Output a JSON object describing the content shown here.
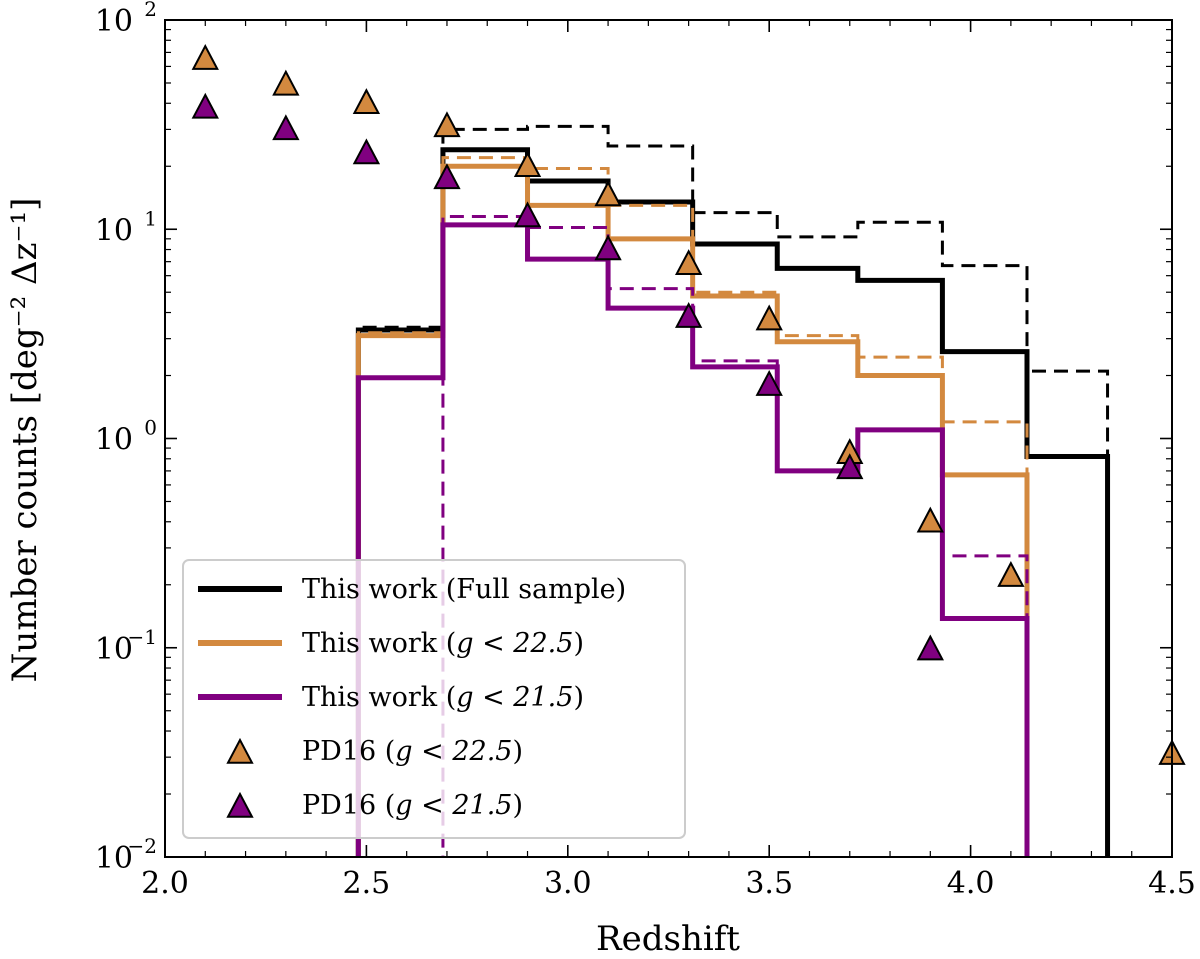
{
  "chart_data": {
    "type": "line",
    "title": "",
    "xlabel": "Redshift",
    "ylabel": "Number counts [deg⁻² Δz⁻¹]",
    "xlim": [
      2.0,
      4.5
    ],
    "ylim": [
      0.01,
      100
    ],
    "yscale": "log",
    "x_ticks": [
      2.0,
      2.5,
      3.0,
      3.5,
      4.0,
      4.5
    ],
    "x_tick_labels": [
      "2.0",
      "2.5",
      "3.0",
      "3.5",
      "4.0",
      "4.5"
    ],
    "y_ticks": [
      {
        "value": 0.01,
        "base": "10",
        "exp": "−2"
      },
      {
        "value": 0.1,
        "base": "10",
        "exp": "−1"
      },
      {
        "value": 1,
        "base": "10",
        "exp": "0"
      },
      {
        "value": 10,
        "base": "10",
        "exp": "1"
      },
      {
        "value": 100,
        "base": "10",
        "exp": "2"
      }
    ],
    "bin_edges": [
      2.48,
      2.69,
      2.9,
      3.1,
      3.31,
      3.52,
      3.72,
      3.93,
      4.14,
      4.34
    ],
    "series": [
      {
        "name": "This work (Full sample)",
        "style": "solid",
        "color": "#000000",
        "values": [
          3.3,
          24,
          17,
          13.5,
          8.5,
          6.5,
          5.7,
          2.6,
          0.82
        ]
      },
      {
        "name": "Full sample (dashed)",
        "style": "dashed",
        "color": "#000000",
        "legend": false,
        "values": [
          3.4,
          30,
          31,
          25,
          12,
          9.2,
          10.8,
          6.7,
          2.1
        ]
      },
      {
        "name": "This work (g < 22.5)",
        "style": "solid",
        "color": "#d3893f",
        "values": [
          3.1,
          20,
          13,
          9,
          4.8,
          2.9,
          2.0,
          0.67,
          0
        ]
      },
      {
        "name": "g < 22.5 (dashed)",
        "style": "dashed",
        "color": "#d3893f",
        "legend": false,
        "values": [
          3.2,
          22,
          19.5,
          13,
          5.0,
          3.1,
          2.45,
          1.2,
          0
        ]
      },
      {
        "name": "This work (g < 21.5)",
        "style": "solid",
        "color": "#800080",
        "values": [
          1.95,
          10.5,
          7.2,
          4.2,
          2.2,
          0.7,
          1.1,
          0.138,
          0
        ]
      },
      {
        "name": "g < 21.5 (dashed)",
        "style": "dashed",
        "color": "#800080",
        "legend": false,
        "values": [
          0,
          11.5,
          10.2,
          5.2,
          2.35,
          0.7,
          1.1,
          0.275,
          0
        ]
      }
    ],
    "points": [
      {
        "name": "PD16 (g < 22.5)",
        "color": "#d3893f",
        "x": [
          2.1,
          2.3,
          2.5,
          2.7,
          2.9,
          3.1,
          3.3,
          3.5,
          3.7,
          3.9,
          4.1,
          4.5
        ],
        "y": [
          65,
          49,
          40,
          31,
          20,
          14.5,
          6.8,
          3.7,
          0.85,
          0.4,
          0.22,
          0.031
        ]
      },
      {
        "name": "PD16 (g < 21.5)",
        "color": "#800080",
        "x": [
          2.1,
          2.3,
          2.5,
          2.7,
          2.9,
          3.1,
          3.3,
          3.5,
          3.7,
          3.9
        ],
        "y": [
          38,
          30,
          23,
          17.5,
          11.5,
          8,
          3.8,
          1.8,
          0.72,
          0.098
        ]
      }
    ],
    "legend": {
      "position": "lower-left",
      "entries": [
        {
          "label_main": "This work (Full sample)",
          "label_math": "",
          "label_end": "",
          "kind": "line",
          "color": "#000000"
        },
        {
          "label_main": "This work (",
          "label_math": "g < 22.5",
          "label_end": ")",
          "kind": "line",
          "color": "#d3893f"
        },
        {
          "label_main": "This work (",
          "label_math": "g < 21.5",
          "label_end": ")",
          "kind": "line",
          "color": "#800080"
        },
        {
          "label_main": "PD16 (",
          "label_math": "g < 22.5",
          "label_end": ")",
          "kind": "marker",
          "color": "#d3893f"
        },
        {
          "label_main": "PD16 (",
          "label_math": "g < 21.5",
          "label_end": ")",
          "kind": "marker",
          "color": "#800080"
        }
      ]
    }
  }
}
